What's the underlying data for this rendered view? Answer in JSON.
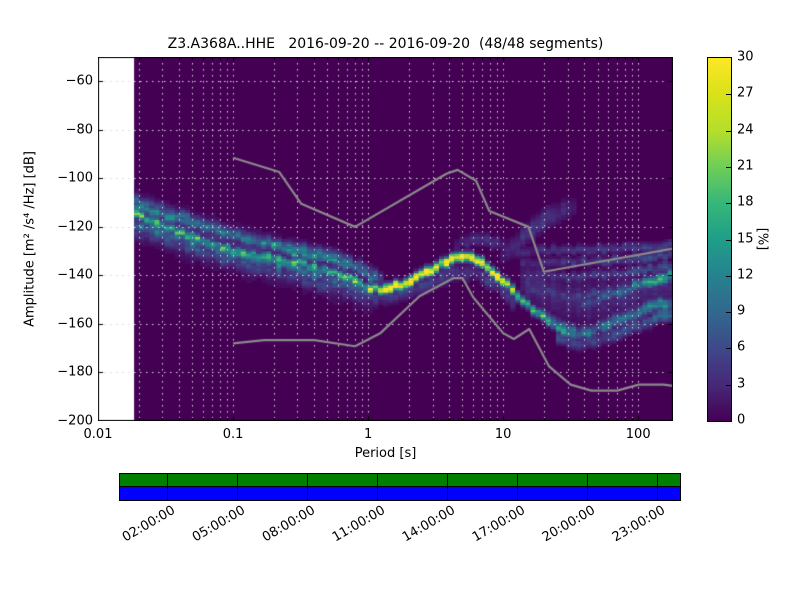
{
  "title": "Z3.A368A..HHE   2016-09-20 -- 2016-09-20  (48/48 segments)",
  "axes": {
    "xlabel": "Period [s]",
    "ylabel": "Amplitude [m² /s⁴ /Hz]  [dB]",
    "x_tick_labels": [
      "0.01",
      "0.1",
      "1",
      "10",
      "100"
    ],
    "x_tick_values": [
      0.01,
      0.1,
      1,
      10,
      100
    ],
    "y_tick_labels": [
      "−60",
      "−80",
      "−100",
      "−120",
      "−140",
      "−160",
      "−180",
      "−200"
    ],
    "y_tick_values": [
      -60,
      -80,
      -100,
      -120,
      -140,
      -160,
      -180,
      -200
    ]
  },
  "chart_data": {
    "type": "heatmap",
    "title": "Z3.A368A..HHE   2016-09-20 -- 2016-09-20  (48/48 segments)",
    "xlabel": "Period [s]",
    "ylabel": "Amplitude [m² /s⁴ /Hz]  [dB]",
    "xscale": "log",
    "xlim": [
      0.01,
      181
    ],
    "ylim": [
      -200,
      -50
    ],
    "grid": true,
    "value_unit": "%",
    "no_data_below_period": 0.0185,
    "background_color": "#440154",
    "no_data_color": "#ffffff",
    "grid_color": "#d9d9d9",
    "period_bin_octaves": 0.125,
    "db_bin_width": 1,
    "colormap_stops": [
      "#440154",
      "#482878",
      "#3e4989",
      "#31688e",
      "#26828e",
      "#1f9e89",
      "#35b779",
      "#6ece58",
      "#b5de2b",
      "#d8e219",
      "#fde725"
    ],
    "colorbar": {
      "label": "[%]",
      "min": 0,
      "max": 30,
      "ticks": [
        0,
        3,
        6,
        9,
        12,
        15,
        18,
        21,
        24,
        27,
        30
      ]
    },
    "noise_models": {
      "color": "#8a8a8a",
      "high": [
        [
          0.1,
          -91.5
        ],
        [
          0.22,
          -97.4
        ],
        [
          0.32,
          -110.5
        ],
        [
          0.8,
          -120.0
        ],
        [
          3.8,
          -98.1
        ],
        [
          4.6,
          -96.5
        ],
        [
          6.3,
          -101.0
        ],
        [
          7.9,
          -113.5
        ],
        [
          15.4,
          -120.0
        ],
        [
          20.0,
          -138.5
        ],
        [
          181,
          -129.0
        ]
      ],
      "low": [
        [
          0.1,
          -168.0
        ],
        [
          0.17,
          -166.7
        ],
        [
          0.4,
          -166.7
        ],
        [
          0.8,
          -169.2
        ],
        [
          1.24,
          -163.7
        ],
        [
          2.4,
          -148.6
        ],
        [
          4.3,
          -141.1
        ],
        [
          5.0,
          -141.1
        ],
        [
          6.0,
          -149.0
        ],
        [
          10.0,
          -163.8
        ],
        [
          12.0,
          -166.2
        ],
        [
          15.6,
          -162.1
        ],
        [
          21.9,
          -177.5
        ],
        [
          31.6,
          -185.0
        ],
        [
          45.0,
          -187.5
        ],
        [
          70.0,
          -187.5
        ],
        [
          101.0,
          -185.0
        ],
        [
          154.0,
          -185.0
        ],
        [
          181,
          -185.5
        ]
      ]
    },
    "ridges": [
      {
        "width_db": 1.3,
        "points": [
          [
            0.0185,
            -114.5,
            15
          ],
          [
            0.025,
            -117.5,
            17
          ],
          [
            0.035,
            -121,
            15
          ],
          [
            0.05,
            -124,
            18
          ],
          [
            0.07,
            -127,
            14
          ],
          [
            0.1,
            -129.5,
            16
          ],
          [
            0.15,
            -132,
            18
          ],
          [
            0.22,
            -133.5,
            15
          ],
          [
            0.32,
            -135,
            17
          ],
          [
            0.45,
            -137,
            14
          ],
          [
            0.65,
            -140,
            16
          ],
          [
            0.85,
            -143,
            18
          ],
          [
            1.05,
            -145.5,
            22
          ],
          [
            1.3,
            -146,
            27
          ],
          [
            1.7,
            -144,
            30
          ],
          [
            2.2,
            -141,
            30
          ],
          [
            3.0,
            -137,
            30
          ],
          [
            4.0,
            -134,
            30
          ],
          [
            5.0,
            -132.5,
            30
          ],
          [
            6.0,
            -132.8,
            30
          ],
          [
            7.0,
            -134.5,
            30
          ],
          [
            8.0,
            -137.5,
            30
          ],
          [
            9.0,
            -140,
            29
          ],
          [
            10.5,
            -143,
            28
          ],
          [
            12,
            -146.5,
            24
          ],
          [
            14,
            -150,
            20
          ],
          [
            16,
            -153,
            17
          ],
          [
            19,
            -156,
            15
          ],
          [
            23,
            -159.5,
            13
          ],
          [
            28,
            -162.5,
            13
          ],
          [
            34,
            -164,
            11
          ]
        ]
      },
      {
        "width_db": 1.8,
        "points": [
          [
            0.0185,
            -109,
            7
          ],
          [
            0.03,
            -113,
            8
          ],
          [
            0.06,
            -118.5,
            8
          ],
          [
            0.1,
            -122.5,
            7
          ],
          [
            0.2,
            -127,
            8
          ],
          [
            0.35,
            -130,
            9
          ],
          [
            0.6,
            -133,
            8
          ],
          [
            0.9,
            -137,
            7
          ],
          [
            1.2,
            -141,
            6
          ]
        ]
      },
      {
        "width_db": 1.4,
        "points": [
          [
            0.02,
            -112,
            10
          ],
          [
            0.04,
            -116.5,
            11
          ],
          [
            0.08,
            -121.5,
            10
          ],
          [
            0.15,
            -126,
            11
          ],
          [
            0.3,
            -130.5,
            13
          ],
          [
            0.5,
            -133,
            11
          ],
          [
            0.8,
            -136.5,
            10
          ],
          [
            1.1,
            -141.5,
            9
          ]
        ]
      },
      {
        "width_db": 1.8,
        "points": [
          [
            0.0185,
            -118.5,
            9
          ],
          [
            0.035,
            -123,
            10
          ],
          [
            0.07,
            -128,
            9
          ],
          [
            0.12,
            -131.5,
            10
          ],
          [
            0.25,
            -136,
            9
          ],
          [
            0.45,
            -140,
            8
          ],
          [
            0.7,
            -144,
            7
          ],
          [
            1.0,
            -147.5,
            6
          ]
        ]
      },
      {
        "width_db": 2.2,
        "points": [
          [
            0.02,
            -122,
            5
          ],
          [
            0.05,
            -128,
            6
          ],
          [
            0.1,
            -133.5,
            6
          ],
          [
            0.2,
            -138.5,
            5
          ],
          [
            0.4,
            -142.5,
            5
          ],
          [
            0.7,
            -146.5,
            4
          ],
          [
            1.1,
            -149.5,
            4
          ]
        ]
      },
      {
        "width_db": 6.0,
        "points": [
          [
            0.0185,
            -115,
            4
          ],
          [
            0.05,
            -124,
            4
          ],
          [
            0.12,
            -130,
            4
          ],
          [
            0.3,
            -136,
            3.5
          ],
          [
            0.7,
            -142,
            3
          ],
          [
            1.0,
            -146,
            3
          ]
        ]
      },
      {
        "width_db": 2.2,
        "points": [
          [
            1.2,
            -149,
            4
          ],
          [
            2,
            -146.5,
            5
          ],
          [
            3,
            -142.5,
            4
          ],
          [
            4.5,
            -138.5,
            4
          ],
          [
            6.5,
            -139,
            4
          ],
          [
            9,
            -144,
            4
          ],
          [
            12,
            -151,
            4
          ]
        ]
      },
      {
        "width_db": 1.8,
        "points": [
          [
            4.5,
            -127.5,
            2.5
          ],
          [
            6.5,
            -124.5,
            3
          ],
          [
            9,
            -126.5,
            3
          ],
          [
            12,
            -129.5,
            2.5
          ]
        ]
      },
      {
        "width_db": 2.8,
        "points": [
          [
            10,
            -132,
            2
          ],
          [
            13,
            -126,
            3
          ],
          [
            16,
            -121,
            4
          ],
          [
            20,
            -117,
            4
          ],
          [
            26,
            -114,
            3
          ],
          [
            33,
            -112,
            2
          ]
        ]
      },
      {
        "width_db": 1.3,
        "points": [
          [
            13,
            -130,
            3
          ],
          [
            25,
            -129.5,
            4
          ],
          [
            50,
            -129,
            4
          ],
          [
            100,
            -128.5,
            5
          ],
          [
            181,
            -127.5,
            5
          ]
        ]
      },
      {
        "width_db": 1.3,
        "points": [
          [
            14,
            -134.5,
            3
          ],
          [
            30,
            -134.5,
            4
          ],
          [
            70,
            -133.5,
            5
          ],
          [
            181,
            -131.5,
            6
          ]
        ]
      },
      {
        "width_db": 1.4,
        "points": [
          [
            15,
            -139,
            3
          ],
          [
            30,
            -141,
            4
          ],
          [
            60,
            -139.5,
            5
          ],
          [
            120,
            -137.5,
            6
          ],
          [
            181,
            -135.5,
            7
          ]
        ]
      },
      {
        "width_db": 1.5,
        "points": [
          [
            16,
            -145,
            4
          ],
          [
            30,
            -149,
            5
          ],
          [
            60,
            -147,
            5
          ],
          [
            120,
            -143.5,
            6
          ],
          [
            181,
            -140.5,
            8
          ]
        ]
      },
      {
        "width_db": 1.5,
        "points": [
          [
            40,
            -152,
            6
          ],
          [
            70,
            -147,
            9
          ],
          [
            110,
            -143,
            12
          ],
          [
            150,
            -141,
            15
          ],
          [
            181,
            -139.5,
            18
          ]
        ]
      },
      {
        "width_db": 1.8,
        "points": [
          [
            20,
            -156,
            8
          ],
          [
            28,
            -162,
            10
          ],
          [
            40,
            -164,
            9
          ],
          [
            60,
            -160,
            9
          ],
          [
            90,
            -156,
            10
          ],
          [
            130,
            -152.5,
            11
          ],
          [
            181,
            -151,
            12
          ]
        ]
      },
      {
        "width_db": 1.8,
        "points": [
          [
            25,
            -166,
            5
          ],
          [
            40,
            -168,
            5
          ],
          [
            70,
            -164,
            6
          ],
          [
            110,
            -159.5,
            7
          ],
          [
            150,
            -156.5,
            8
          ],
          [
            181,
            -155,
            9
          ]
        ]
      },
      {
        "width_db": 6.0,
        "points": [
          [
            14,
            -142,
            3
          ],
          [
            30,
            -150,
            3
          ],
          [
            60,
            -150,
            3
          ],
          [
            120,
            -145,
            3
          ],
          [
            181,
            -142,
            3
          ]
        ]
      }
    ]
  },
  "colorbar": {
    "unit_label": "[%]",
    "tick_labels": [
      "0",
      "3",
      "6",
      "9",
      "12",
      "15",
      "18",
      "21",
      "24",
      "27",
      "30"
    ],
    "tick_values": [
      0,
      3,
      6,
      9,
      12,
      15,
      18,
      21,
      24,
      27,
      30
    ]
  },
  "coverage": {
    "top_bar_color": "#008000",
    "bottom_bar_color": "#0000ff",
    "ticks": [
      {
        "label": "02:00:00",
        "hour": 2
      },
      {
        "label": "05:00:00",
        "hour": 5
      },
      {
        "label": "08:00:00",
        "hour": 8
      },
      {
        "label": "11:00:00",
        "hour": 11
      },
      {
        "label": "14:00:00",
        "hour": 14
      },
      {
        "label": "17:00:00",
        "hour": 17
      },
      {
        "label": "20:00:00",
        "hour": 20
      },
      {
        "label": "23:00:00",
        "hour": 23
      }
    ]
  }
}
